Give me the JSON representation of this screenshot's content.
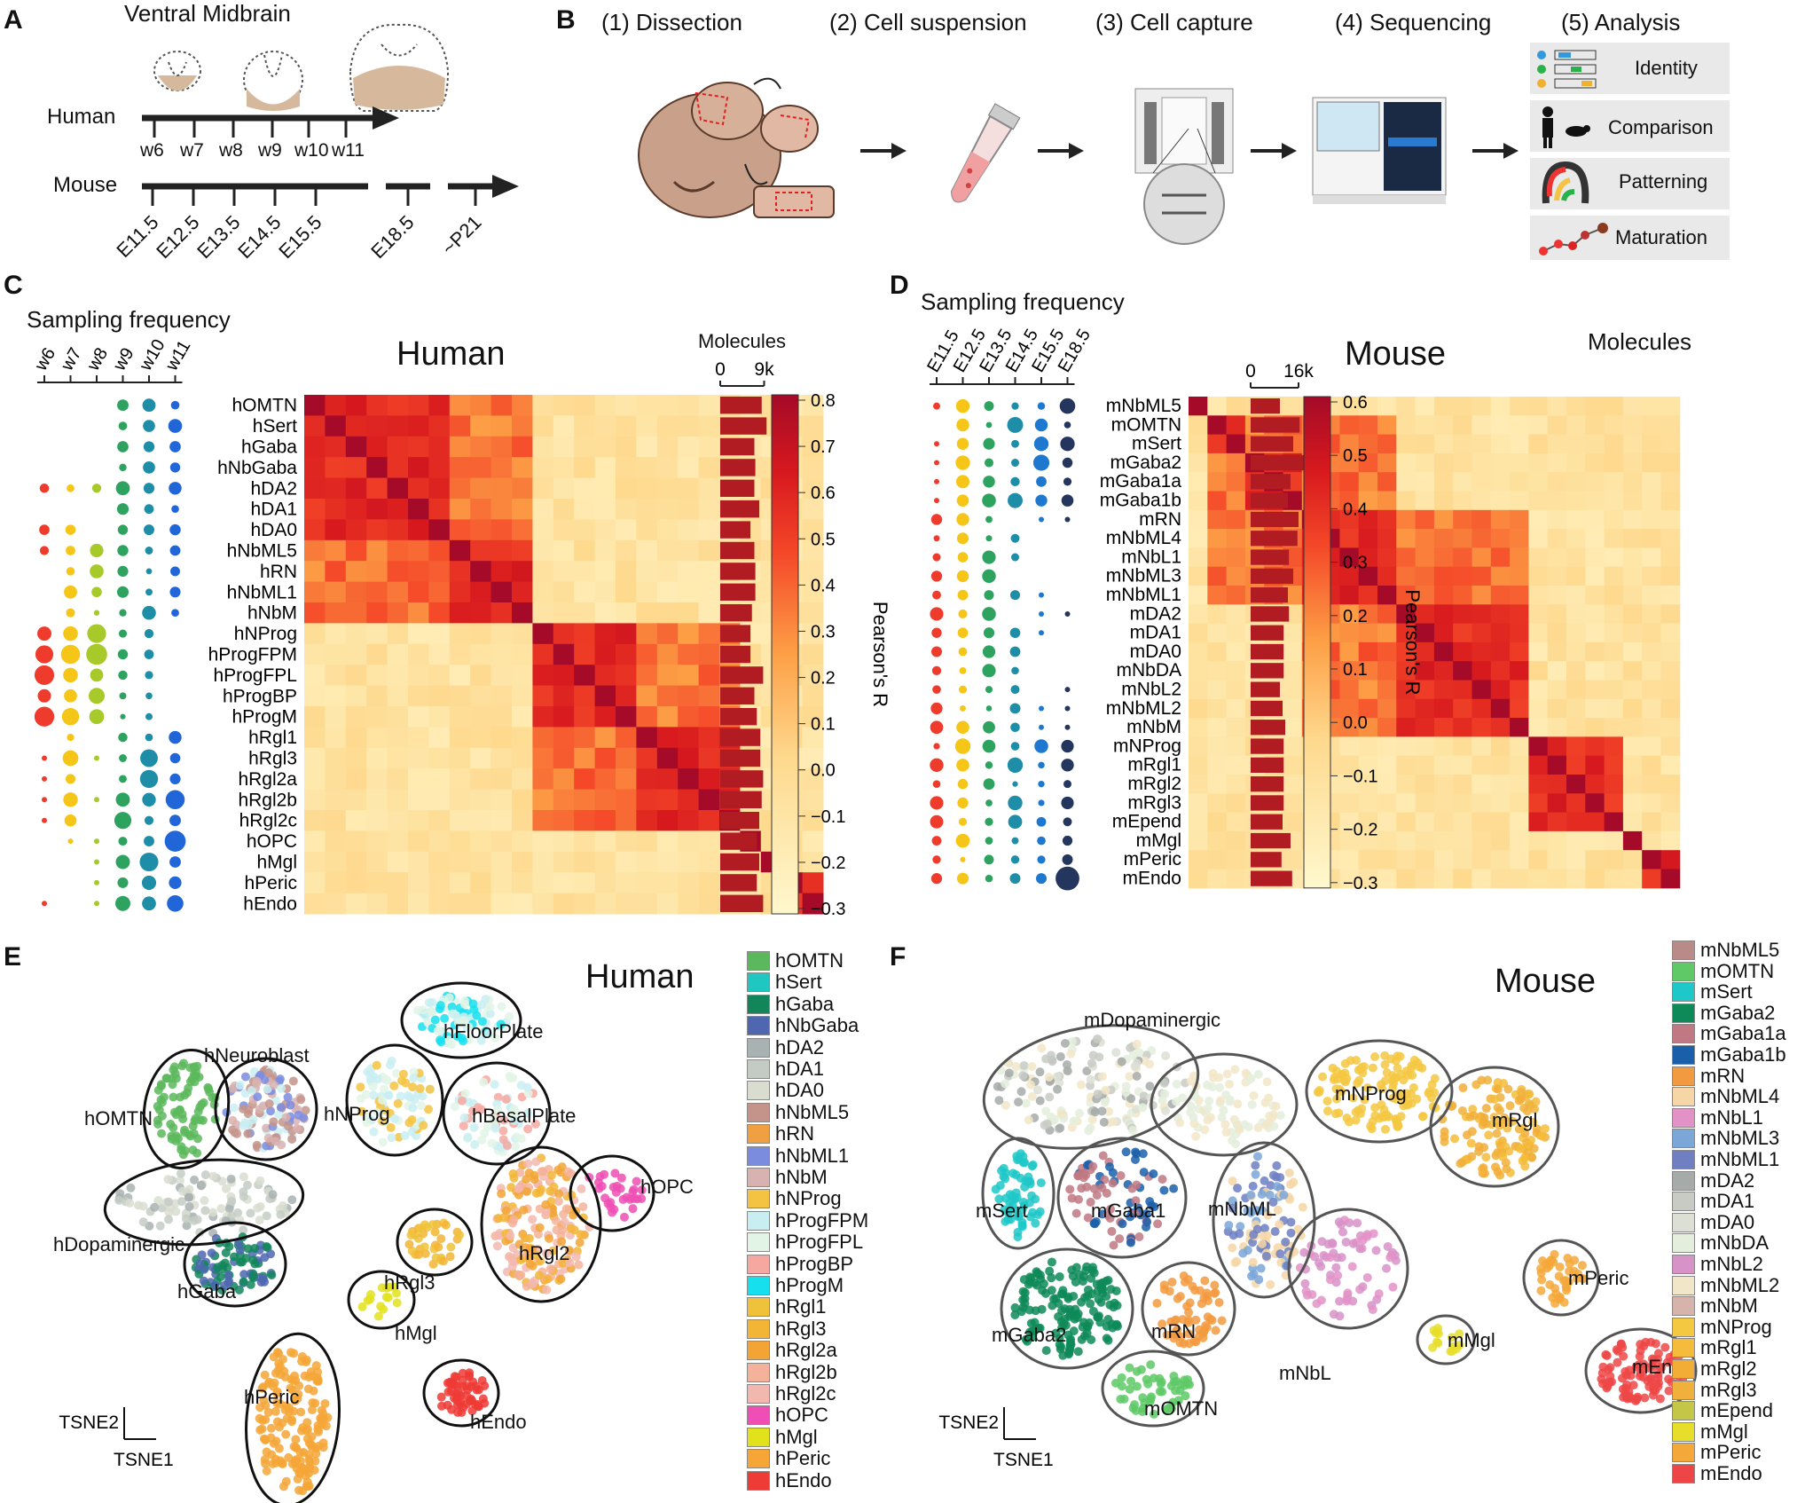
{
  "panels": {
    "A": "A",
    "B": "B",
    "C": "C",
    "D": "D",
    "E": "E",
    "F": "F"
  },
  "panelA": {
    "title": "Ventral Midbrain",
    "human_label": "Human",
    "mouse_label": "Mouse",
    "human_ticks": [
      "w6",
      "w7",
      "w8",
      "w9",
      "w10",
      "w11"
    ],
    "mouse_ticks": [
      "E11.5",
      "E12.5",
      "E13.5",
      "E14.5",
      "E15.5",
      "E18.5",
      "~P21"
    ]
  },
  "panelB": {
    "steps": [
      "(1) Dissection",
      "(2) Cell suspension",
      "(3) Cell capture",
      "(4) Sequencing",
      "(5) Analysis"
    ],
    "analysis": [
      "Identity",
      "Comparison",
      "Patterning",
      "Maturation"
    ]
  },
  "panelC": {
    "sampling_title": "Sampling frequency",
    "title": "Human",
    "molecules_label": "Molecules",
    "molecules_ticks": [
      "0",
      "9k"
    ],
    "cbar_label": "Pearson's R",
    "cbar_ticks": [
      "0.8",
      "0.7",
      "0.6",
      "0.5",
      "0.4",
      "0.3",
      "0.2",
      "0.1",
      "0.0",
      "−0.1",
      "−0.2",
      "−0.3"
    ],
    "timepoints": [
      "w6",
      "w7",
      "w8",
      "w9",
      "w10",
      "w11"
    ],
    "rows": [
      "hOMTN",
      "hSert",
      "hGaba",
      "hNbGaba",
      "hDA2",
      "hDA1",
      "hDA0",
      "hNbML5",
      "hRN",
      "hNbML1",
      "hNbM",
      "hNProg",
      "hProgFPM",
      "hProgFPL",
      "hProgBP",
      "hProgM",
      "hRgl1",
      "hRgl3",
      "hRgl2a",
      "hRgl2b",
      "hRgl2c",
      "hOPC",
      "hMgl",
      "hPeric",
      "hEndo"
    ],
    "molecules": [
      0.85,
      0.95,
      0.7,
      0.72,
      0.7,
      0.8,
      0.62,
      0.7,
      0.72,
      0.72,
      0.65,
      0.62,
      0.62,
      0.88,
      0.7,
      0.75,
      0.82,
      0.82,
      0.88,
      0.85,
      0.8,
      0.75,
      0.8,
      0.75,
      0.88
    ],
    "blocks": [
      [
        0,
        7
      ],
      [
        7,
        11
      ],
      [
        11,
        16
      ],
      [
        16,
        21
      ],
      [
        21,
        22
      ],
      [
        22,
        23
      ],
      [
        23,
        25
      ]
    ]
  },
  "panelD": {
    "sampling_title": "Sampling frequency",
    "title": "Mouse",
    "molecules_label": "Molecules",
    "molecules_ticks": [
      "0",
      "16k"
    ],
    "cbar_label": "Pearson's R",
    "cbar_ticks": [
      "0.6",
      "0.5",
      "0.4",
      "0.3",
      "0.2",
      "0.1",
      "0.0",
      "−0.1",
      "−0.2",
      "−0.3"
    ],
    "timepoints": [
      "E11.5",
      "E12.5",
      "E13.5",
      "E14.5",
      "E15.5",
      "E18.5"
    ],
    "rows": [
      "mNbML5",
      "mOMTN",
      "mSert",
      "mGaba2",
      "mGaba1a",
      "mGaba1b",
      "mRN",
      "mNbML4",
      "mNbL1",
      "mNbML3",
      "mNbML1",
      "mDA2",
      "mDA1",
      "mDA0",
      "mNbDA",
      "mNbL2",
      "mNbML2",
      "mNbM",
      "mNProg",
      "mRgl1",
      "mRgl2",
      "mRgl3",
      "mEpend",
      "mMgl",
      "mPeric",
      "mEndo"
    ],
    "molecules": [
      0.55,
      0.92,
      0.8,
      1.0,
      0.75,
      0.7,
      0.9,
      0.88,
      0.72,
      0.8,
      0.7,
      0.72,
      0.62,
      0.62,
      0.62,
      0.55,
      0.6,
      0.65,
      0.62,
      0.62,
      0.62,
      0.62,
      0.6,
      0.75,
      0.58,
      0.78
    ],
    "blocks": [
      [
        0,
        1
      ],
      [
        1,
        3
      ],
      [
        3,
        6
      ],
      [
        6,
        11
      ],
      [
        11,
        18
      ],
      [
        18,
        23
      ],
      [
        23,
        24
      ],
      [
        24,
        26
      ]
    ]
  },
  "panelE": {
    "title": "Human",
    "axis_y": "TSNE2",
    "axis_x": "TSNE1",
    "cluster_labels": [
      "hFloorPlate",
      "hNeuroblast",
      "hOMTN",
      "hNProg",
      "hBasalPlate",
      "hOPC",
      "hDopaminergic",
      "hRgl3",
      "hRgl2",
      "hGaba",
      "hMgl",
      "hPeric",
      "hEndo"
    ],
    "legend": [
      {
        "name": "hOMTN",
        "color": "#5cb85c"
      },
      {
        "name": "hSert",
        "color": "#1fc7c0"
      },
      {
        "name": "hGaba",
        "color": "#12865a"
      },
      {
        "name": "hNbGaba",
        "color": "#4e67b0"
      },
      {
        "name": "hDA2",
        "color": "#a9b2b2"
      },
      {
        "name": "hDA1",
        "color": "#c4cbc4"
      },
      {
        "name": "hDA0",
        "color": "#d8ddd0"
      },
      {
        "name": "hNbML5",
        "color": "#c4948a"
      },
      {
        "name": "hRN",
        "color": "#f0a040"
      },
      {
        "name": "hNbML1",
        "color": "#7b8cdf"
      },
      {
        "name": "hNbM",
        "color": "#d8b2b0"
      },
      {
        "name": "hNProg",
        "color": "#f5c342"
      },
      {
        "name": "hProgFPM",
        "color": "#c9eef2"
      },
      {
        "name": "hProgFPL",
        "color": "#e2f4e6"
      },
      {
        "name": "hProgBP",
        "color": "#f4a8a0"
      },
      {
        "name": "hProgM",
        "color": "#16e0ee"
      },
      {
        "name": "hRgl1",
        "color": "#f0c23a"
      },
      {
        "name": "hRgl3",
        "color": "#f3b535"
      },
      {
        "name": "hRgl2a",
        "color": "#f2a535"
      },
      {
        "name": "hRgl2b",
        "color": "#f4b29a"
      },
      {
        "name": "hRgl2c",
        "color": "#f2b8b0"
      },
      {
        "name": "hOPC",
        "color": "#ef4fb4"
      },
      {
        "name": "hMgl",
        "color": "#e2e21c"
      },
      {
        "name": "hPeric",
        "color": "#f5a637"
      },
      {
        "name": "hEndo",
        "color": "#ef3b36"
      }
    ]
  },
  "panelF": {
    "title": "Mouse",
    "axis_y": "TSNE2",
    "axis_x": "TSNE1",
    "cluster_labels": [
      "mDopaminergic",
      "mNProg",
      "mRgl",
      "mSert",
      "mGaba1",
      "mNbML",
      "mGaba2",
      "mRN",
      "mNbL",
      "mMgl",
      "mPeric",
      "mEndo",
      "mOMTN"
    ],
    "legend": [
      {
        "name": "mNbML5",
        "color": "#b88a88"
      },
      {
        "name": "mOMTN",
        "color": "#5ec966"
      },
      {
        "name": "mSert",
        "color": "#1ec8c8"
      },
      {
        "name": "mGaba2",
        "color": "#0e8a58"
      },
      {
        "name": "mGaba1a",
        "color": "#c07882"
      },
      {
        "name": "mGaba1b",
        "color": "#1a5faa"
      },
      {
        "name": "mRN",
        "color": "#f29a40"
      },
      {
        "name": "mNbML4",
        "color": "#f6d6a6"
      },
      {
        "name": "mNbL1",
        "color": "#e392c8"
      },
      {
        "name": "mNbML3",
        "color": "#7aa6d8"
      },
      {
        "name": "mNbML1",
        "color": "#6f7fc2"
      },
      {
        "name": "mDA2",
        "color": "#a6aaa8"
      },
      {
        "name": "mDA1",
        "color": "#c8cbc4"
      },
      {
        "name": "mDA0",
        "color": "#dcdfd4"
      },
      {
        "name": "mNbDA",
        "color": "#e4eedc"
      },
      {
        "name": "mNbL2",
        "color": "#d792c8"
      },
      {
        "name": "mNbML2",
        "color": "#f2e6c8"
      },
      {
        "name": "mNbM",
        "color": "#d6b4ac"
      },
      {
        "name": "mNProg",
        "color": "#f5c842"
      },
      {
        "name": "mRgl1",
        "color": "#f4bc3a"
      },
      {
        "name": "mRgl2",
        "color": "#f2ad36"
      },
      {
        "name": "mRgl3",
        "color": "#f0b13c"
      },
      {
        "name": "mEpend",
        "color": "#c4c648"
      },
      {
        "name": "mMgl",
        "color": "#e6de2a"
      },
      {
        "name": "mPeric",
        "color": "#f4a83a"
      },
      {
        "name": "mEndo",
        "color": "#ee4646"
      }
    ]
  }
}
